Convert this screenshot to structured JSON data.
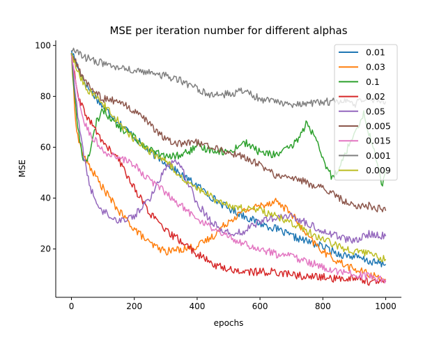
{
  "chart_data": {
    "type": "line",
    "title": "MSE per iteration number for different alphas",
    "xlabel": "epochs",
    "ylabel": "MSE",
    "xlim": [
      -50,
      1050
    ],
    "ylim": [
      1,
      102
    ],
    "xticks": [
      0,
      200,
      400,
      600,
      800,
      1000
    ],
    "yticks": [
      20,
      40,
      60,
      80,
      100
    ],
    "grid": false,
    "legend_position": "top-right",
    "series": [
      {
        "name": "0.01",
        "color": "#1f77b4",
        "points": [
          [
            0,
            98
          ],
          [
            25,
            90
          ],
          [
            50,
            84
          ],
          [
            75,
            80
          ],
          [
            100,
            76
          ],
          [
            150,
            70
          ],
          [
            200,
            64
          ],
          [
            250,
            58
          ],
          [
            300,
            54
          ],
          [
            350,
            49
          ],
          [
            400,
            45
          ],
          [
            450,
            40
          ],
          [
            500,
            36
          ],
          [
            550,
            33
          ],
          [
            600,
            30
          ],
          [
            650,
            28
          ],
          [
            700,
            25
          ],
          [
            750,
            23
          ],
          [
            800,
            21
          ],
          [
            850,
            18
          ],
          [
            900,
            17
          ],
          [
            950,
            15
          ],
          [
            1000,
            14
          ]
        ]
      },
      {
        "name": "0.03",
        "color": "#ff7f0e",
        "points": [
          [
            0,
            97
          ],
          [
            10,
            75
          ],
          [
            20,
            64
          ],
          [
            40,
            56
          ],
          [
            60,
            52
          ],
          [
            80,
            48
          ],
          [
            100,
            44
          ],
          [
            150,
            35
          ],
          [
            200,
            28
          ],
          [
            250,
            22
          ],
          [
            300,
            19
          ],
          [
            350,
            20
          ],
          [
            400,
            21
          ],
          [
            450,
            25
          ],
          [
            500,
            31
          ],
          [
            550,
            35
          ],
          [
            600,
            37
          ],
          [
            650,
            39
          ],
          [
            700,
            34
          ],
          [
            750,
            25
          ],
          [
            800,
            19
          ],
          [
            850,
            15
          ],
          [
            900,
            12
          ],
          [
            950,
            10
          ],
          [
            1000,
            8
          ]
        ]
      },
      {
        "name": "0.1",
        "color": "#2ca02c",
        "points": [
          [
            0,
            97
          ],
          [
            10,
            80
          ],
          [
            20,
            68
          ],
          [
            30,
            60
          ],
          [
            40,
            54
          ],
          [
            60,
            58
          ],
          [
            80,
            70
          ],
          [
            100,
            75
          ],
          [
            120,
            72
          ],
          [
            150,
            68
          ],
          [
            200,
            64
          ],
          [
            250,
            59
          ],
          [
            300,
            56
          ],
          [
            350,
            57
          ],
          [
            400,
            60
          ],
          [
            450,
            59
          ],
          [
            500,
            58
          ],
          [
            550,
            62
          ],
          [
            600,
            58
          ],
          [
            650,
            57
          ],
          [
            700,
            60
          ],
          [
            730,
            65
          ],
          [
            750,
            70
          ],
          [
            780,
            62
          ],
          [
            800,
            55
          ],
          [
            830,
            48
          ],
          [
            860,
            54
          ],
          [
            900,
            66
          ],
          [
            930,
            73
          ],
          [
            960,
            60
          ],
          [
            990,
            45
          ],
          [
            1000,
            51
          ]
        ]
      },
      {
        "name": "0.02",
        "color": "#d62728",
        "points": [
          [
            0,
            97
          ],
          [
            20,
            80
          ],
          [
            40,
            74
          ],
          [
            60,
            70
          ],
          [
            80,
            66
          ],
          [
            100,
            62
          ],
          [
            150,
            55
          ],
          [
            200,
            44
          ],
          [
            250,
            34
          ],
          [
            300,
            27
          ],
          [
            350,
            23
          ],
          [
            400,
            18
          ],
          [
            450,
            14
          ],
          [
            500,
            12
          ],
          [
            550,
            11
          ],
          [
            600,
            11
          ],
          [
            650,
            11
          ],
          [
            700,
            10
          ],
          [
            750,
            9
          ],
          [
            800,
            9
          ],
          [
            850,
            8
          ],
          [
            900,
            9
          ],
          [
            950,
            7
          ],
          [
            1000,
            7
          ]
        ]
      },
      {
        "name": "0.05",
        "color": "#9467bd",
        "points": [
          [
            0,
            97
          ],
          [
            20,
            72
          ],
          [
            40,
            56
          ],
          [
            60,
            44
          ],
          [
            80,
            38
          ],
          [
            100,
            35
          ],
          [
            150,
            31
          ],
          [
            200,
            33
          ],
          [
            250,
            40
          ],
          [
            300,
            52
          ],
          [
            330,
            56
          ],
          [
            350,
            52
          ],
          [
            400,
            38
          ],
          [
            450,
            30
          ],
          [
            500,
            26
          ],
          [
            550,
            27
          ],
          [
            600,
            31
          ],
          [
            650,
            32
          ],
          [
            700,
            33
          ],
          [
            750,
            30
          ],
          [
            800,
            27
          ],
          [
            850,
            25
          ],
          [
            900,
            23
          ],
          [
            950,
            26
          ],
          [
            1000,
            25
          ]
        ]
      },
      {
        "name": "0.005",
        "color": "#8c564b",
        "points": [
          [
            0,
            97
          ],
          [
            25,
            90
          ],
          [
            50,
            85
          ],
          [
            100,
            79
          ],
          [
            150,
            78
          ],
          [
            200,
            74
          ],
          [
            250,
            69
          ],
          [
            300,
            63
          ],
          [
            350,
            61
          ],
          [
            400,
            62
          ],
          [
            450,
            60
          ],
          [
            500,
            58
          ],
          [
            550,
            56
          ],
          [
            600,
            53
          ],
          [
            650,
            49
          ],
          [
            700,
            48
          ],
          [
            750,
            46
          ],
          [
            800,
            44
          ],
          [
            850,
            40
          ],
          [
            900,
            37
          ],
          [
            950,
            37
          ],
          [
            1000,
            35
          ]
        ]
      },
      {
        "name": "0.015",
        "color": "#e377c2",
        "points": [
          [
            0,
            96
          ],
          [
            20,
            80
          ],
          [
            40,
            70
          ],
          [
            60,
            65
          ],
          [
            80,
            62
          ],
          [
            100,
            58
          ],
          [
            150,
            56
          ],
          [
            200,
            53
          ],
          [
            250,
            47
          ],
          [
            300,
            42
          ],
          [
            350,
            37
          ],
          [
            400,
            32
          ],
          [
            450,
            28
          ],
          [
            500,
            25
          ],
          [
            550,
            22
          ],
          [
            600,
            20
          ],
          [
            650,
            18
          ],
          [
            700,
            17
          ],
          [
            750,
            15
          ],
          [
            800,
            13
          ],
          [
            850,
            11
          ],
          [
            900,
            10
          ],
          [
            950,
            9
          ],
          [
            1000,
            8
          ]
        ]
      },
      {
        "name": "0.001",
        "color": "#7f7f7f",
        "points": [
          [
            0,
            98
          ],
          [
            50,
            95
          ],
          [
            100,
            93
          ],
          [
            150,
            91
          ],
          [
            200,
            90
          ],
          [
            250,
            89
          ],
          [
            300,
            88
          ],
          [
            350,
            86
          ],
          [
            400,
            83
          ],
          [
            450,
            80
          ],
          [
            500,
            81
          ],
          [
            550,
            82
          ],
          [
            600,
            79
          ],
          [
            650,
            78
          ],
          [
            700,
            77
          ],
          [
            750,
            77
          ],
          [
            800,
            78
          ],
          [
            850,
            78
          ],
          [
            900,
            77
          ],
          [
            950,
            79
          ],
          [
            1000,
            78
          ]
        ]
      },
      {
        "name": "0.009",
        "color": "#bcbd22",
        "points": [
          [
            0,
            97
          ],
          [
            25,
            88
          ],
          [
            50,
            83
          ],
          [
            100,
            77
          ],
          [
            150,
            70
          ],
          [
            200,
            63
          ],
          [
            250,
            58
          ],
          [
            300,
            55
          ],
          [
            350,
            48
          ],
          [
            400,
            44
          ],
          [
            450,
            40
          ],
          [
            500,
            37
          ],
          [
            550,
            36
          ],
          [
            600,
            35
          ],
          [
            650,
            33
          ],
          [
            700,
            30
          ],
          [
            750,
            27
          ],
          [
            800,
            24
          ],
          [
            850,
            21
          ],
          [
            900,
            19
          ],
          [
            950,
            18
          ],
          [
            1000,
            16
          ]
        ]
      }
    ]
  }
}
